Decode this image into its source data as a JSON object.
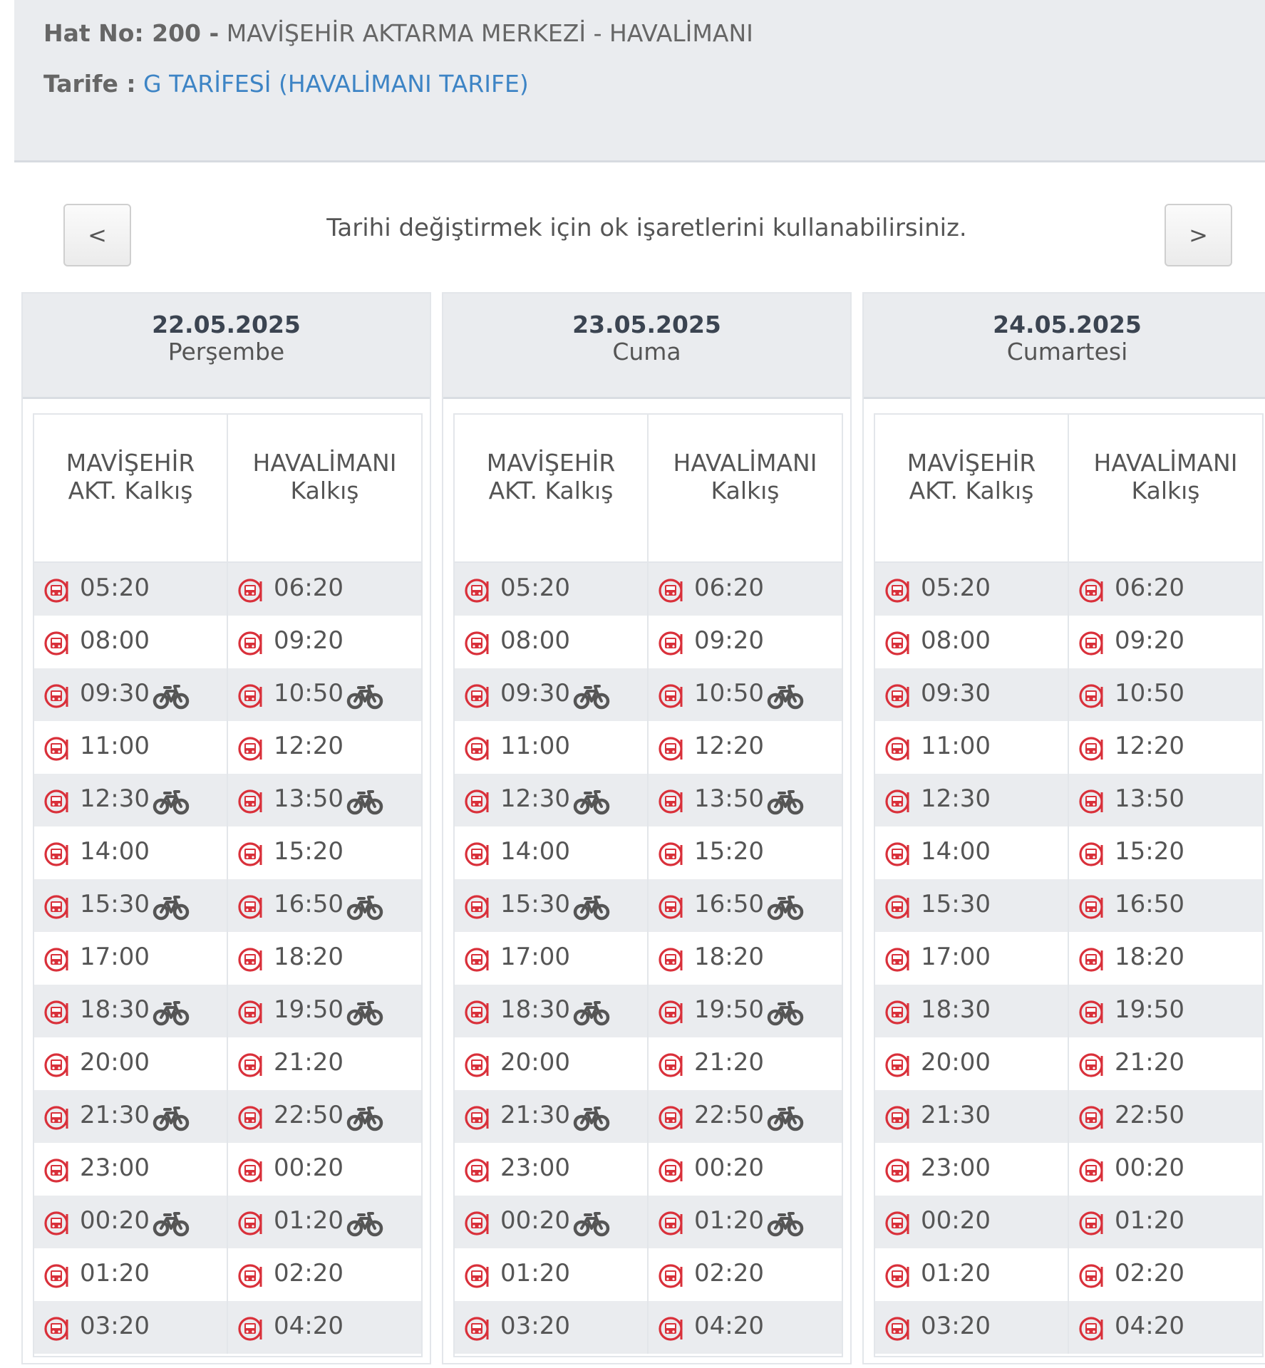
{
  "header": {
    "hat_label": "Hat No: 200 -",
    "hat_route": "MAVİŞEHİR AKTARMA MERKEZİ - HAVALİMANI",
    "tarife_label": "Tarife :",
    "tarife_value": "G TARİFESİ (HAVALİMANI TARIFE)"
  },
  "nav": {
    "prev_label": "<",
    "next_label": ">",
    "hint": "Tarihi değiştirmek için ok işaretlerini kullanabilirsiniz."
  },
  "icons": {
    "stop": "bus-stop-icon",
    "bike": "bicycle-icon",
    "stop_color": "#d9303a",
    "bike_color": "#555555"
  },
  "days": [
    {
      "date": "22.05.2025",
      "weekday": "Perşembe",
      "col1_header": [
        "MAVİŞEHİR",
        "AKT. Kalkış"
      ],
      "col2_header": [
        "HAVALİMANI",
        "Kalkış"
      ],
      "rows": [
        [
          {
            "t": "05:20",
            "bike": false
          },
          {
            "t": "06:20",
            "bike": false
          }
        ],
        [
          {
            "t": "08:00",
            "bike": false
          },
          {
            "t": "09:20",
            "bike": false
          }
        ],
        [
          {
            "t": "09:30",
            "bike": true
          },
          {
            "t": "10:50",
            "bike": true
          }
        ],
        [
          {
            "t": "11:00",
            "bike": false
          },
          {
            "t": "12:20",
            "bike": false
          }
        ],
        [
          {
            "t": "12:30",
            "bike": true
          },
          {
            "t": "13:50",
            "bike": true
          }
        ],
        [
          {
            "t": "14:00",
            "bike": false
          },
          {
            "t": "15:20",
            "bike": false
          }
        ],
        [
          {
            "t": "15:30",
            "bike": true
          },
          {
            "t": "16:50",
            "bike": true
          }
        ],
        [
          {
            "t": "17:00",
            "bike": false
          },
          {
            "t": "18:20",
            "bike": false
          }
        ],
        [
          {
            "t": "18:30",
            "bike": true
          },
          {
            "t": "19:50",
            "bike": true
          }
        ],
        [
          {
            "t": "20:00",
            "bike": false
          },
          {
            "t": "21:20",
            "bike": false
          }
        ],
        [
          {
            "t": "21:30",
            "bike": true
          },
          {
            "t": "22:50",
            "bike": true
          }
        ],
        [
          {
            "t": "23:00",
            "bike": false
          },
          {
            "t": "00:20",
            "bike": false
          }
        ],
        [
          {
            "t": "00:20",
            "bike": true
          },
          {
            "t": "01:20",
            "bike": true
          }
        ],
        [
          {
            "t": "01:20",
            "bike": false
          },
          {
            "t": "02:20",
            "bike": false
          }
        ],
        [
          {
            "t": "03:20",
            "bike": false
          },
          {
            "t": "04:20",
            "bike": false
          }
        ]
      ]
    },
    {
      "date": "23.05.2025",
      "weekday": "Cuma",
      "col1_header": [
        "MAVİŞEHİR",
        "AKT. Kalkış"
      ],
      "col2_header": [
        "HAVALİMANI",
        "Kalkış"
      ],
      "rows": [
        [
          {
            "t": "05:20",
            "bike": false
          },
          {
            "t": "06:20",
            "bike": false
          }
        ],
        [
          {
            "t": "08:00",
            "bike": false
          },
          {
            "t": "09:20",
            "bike": false
          }
        ],
        [
          {
            "t": "09:30",
            "bike": true
          },
          {
            "t": "10:50",
            "bike": true
          }
        ],
        [
          {
            "t": "11:00",
            "bike": false
          },
          {
            "t": "12:20",
            "bike": false
          }
        ],
        [
          {
            "t": "12:30",
            "bike": true
          },
          {
            "t": "13:50",
            "bike": true
          }
        ],
        [
          {
            "t": "14:00",
            "bike": false
          },
          {
            "t": "15:20",
            "bike": false
          }
        ],
        [
          {
            "t": "15:30",
            "bike": true
          },
          {
            "t": "16:50",
            "bike": true
          }
        ],
        [
          {
            "t": "17:00",
            "bike": false
          },
          {
            "t": "18:20",
            "bike": false
          }
        ],
        [
          {
            "t": "18:30",
            "bike": true
          },
          {
            "t": "19:50",
            "bike": true
          }
        ],
        [
          {
            "t": "20:00",
            "bike": false
          },
          {
            "t": "21:20",
            "bike": false
          }
        ],
        [
          {
            "t": "21:30",
            "bike": true
          },
          {
            "t": "22:50",
            "bike": true
          }
        ],
        [
          {
            "t": "23:00",
            "bike": false
          },
          {
            "t": "00:20",
            "bike": false
          }
        ],
        [
          {
            "t": "00:20",
            "bike": true
          },
          {
            "t": "01:20",
            "bike": true
          }
        ],
        [
          {
            "t": "01:20",
            "bike": false
          },
          {
            "t": "02:20",
            "bike": false
          }
        ],
        [
          {
            "t": "03:20",
            "bike": false
          },
          {
            "t": "04:20",
            "bike": false
          }
        ]
      ]
    },
    {
      "date": "24.05.2025",
      "weekday": "Cumartesi",
      "col1_header": [
        "MAVİŞEHİR",
        "AKT. Kalkış"
      ],
      "col2_header": [
        "HAVALİMANI",
        "Kalkış"
      ],
      "rows": [
        [
          {
            "t": "05:20",
            "bike": false
          },
          {
            "t": "06:20",
            "bike": false
          }
        ],
        [
          {
            "t": "08:00",
            "bike": false
          },
          {
            "t": "09:20",
            "bike": false
          }
        ],
        [
          {
            "t": "09:30",
            "bike": false
          },
          {
            "t": "10:50",
            "bike": false
          }
        ],
        [
          {
            "t": "11:00",
            "bike": false
          },
          {
            "t": "12:20",
            "bike": false
          }
        ],
        [
          {
            "t": "12:30",
            "bike": false
          },
          {
            "t": "13:50",
            "bike": false
          }
        ],
        [
          {
            "t": "14:00",
            "bike": false
          },
          {
            "t": "15:20",
            "bike": false
          }
        ],
        [
          {
            "t": "15:30",
            "bike": false
          },
          {
            "t": "16:50",
            "bike": false
          }
        ],
        [
          {
            "t": "17:00",
            "bike": false
          },
          {
            "t": "18:20",
            "bike": false
          }
        ],
        [
          {
            "t": "18:30",
            "bike": false
          },
          {
            "t": "19:50",
            "bike": false
          }
        ],
        [
          {
            "t": "20:00",
            "bike": false
          },
          {
            "t": "21:20",
            "bike": false
          }
        ],
        [
          {
            "t": "21:30",
            "bike": false
          },
          {
            "t": "22:50",
            "bike": false
          }
        ],
        [
          {
            "t": "23:00",
            "bike": false
          },
          {
            "t": "00:20",
            "bike": false
          }
        ],
        [
          {
            "t": "00:20",
            "bike": false
          },
          {
            "t": "01:20",
            "bike": false
          }
        ],
        [
          {
            "t": "01:20",
            "bike": false
          },
          {
            "t": "02:20",
            "bike": false
          }
        ],
        [
          {
            "t": "03:20",
            "bike": false
          },
          {
            "t": "04:20",
            "bike": false
          }
        ]
      ]
    }
  ]
}
